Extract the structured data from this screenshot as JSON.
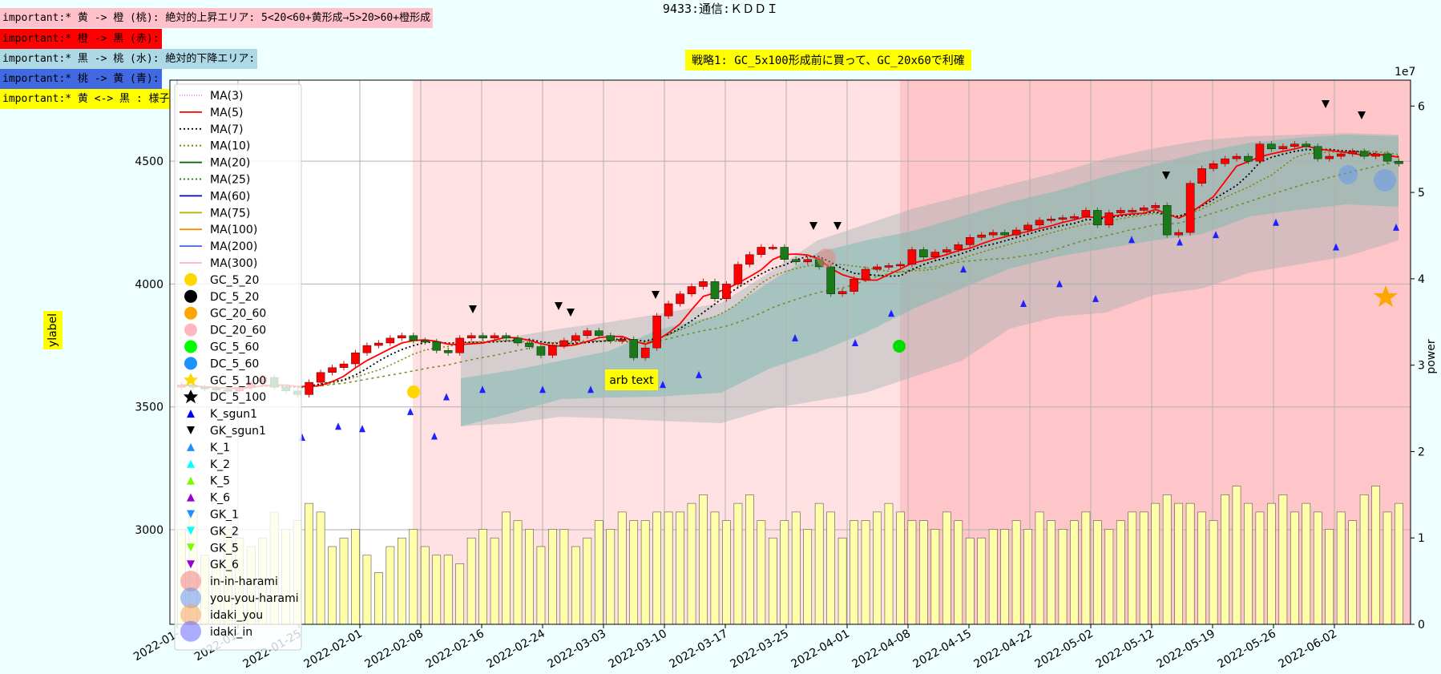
{
  "title": "9433:通信:ＫＤＤＩ",
  "notes": [
    {
      "text": "important:* 黄 -> 橙 (桃): 絶対的上昇エリア: 5<20<60+黄形成→5>20>60+橙形成",
      "bg": "#ffc0cb"
    },
    {
      "text": "important:* 橙 -> 黒 (赤):",
      "bg": "#ff0000"
    },
    {
      "text": "important:* 黒 -> 桃 (水): 絶対的下降エリア:",
      "bg": "#add8e6"
    },
    {
      "text": "important:* 桃 -> 黄 (青):",
      "bg": "#4169e1"
    },
    {
      "text": "important:* 黄 <-> 黒 : 様子見:",
      "bg": "#ffff00"
    }
  ],
  "strategy_text": "戦略1: GC_5x100形成前に買って、GC_20x60で利確",
  "annotation": "arb text",
  "ylabel": "ylabel",
  "y2label": "power",
  "y2_exponent": "1e7",
  "colors": {
    "background": "#eeffff",
    "up": "#ff0000",
    "down": "#1a7a1a",
    "volume": "#ffffaa"
  },
  "chart_data": {
    "type": "candlestick",
    "x_ticks": [
      "2022-01-",
      "2022-01-",
      "2022-01-25",
      "2022-02-01",
      "2022-02-08",
      "2022-02-16",
      "2022-02-24",
      "2022-03-03",
      "2022-03-10",
      "2022-03-17",
      "2022-03-25",
      "2022-04-01",
      "2022-04-08",
      "2022-04-15",
      "2022-04-22",
      "2022-05-02",
      "2022-05-12",
      "2022-05-19",
      "2022-05-26",
      "2022-06-02"
    ],
    "y_ticks": [
      3000,
      3500,
      4000,
      4500
    ],
    "ylim": [
      2615,
      4830
    ],
    "y2_ticks": [
      0,
      1,
      2,
      3,
      4,
      5,
      6
    ],
    "y2lim": [
      0,
      6.3
    ],
    "legend": [
      "MA(3)",
      "MA(5)",
      "MA(7)",
      "MA(10)",
      "MA(20)",
      "MA(25)",
      "MA(60)",
      "MA(75)",
      "MA(100)",
      "MA(200)",
      "MA(300)",
      "GC_5_20",
      "DC_5_20",
      "GC_20_60",
      "DC_20_60",
      "GC_5_60",
      "DC_5_60",
      "GC_5_100",
      "DC_5_100",
      "K_sgun1",
      "GK_sgun1",
      "K_1",
      "K_2",
      "K_5",
      "K_6",
      "GK_1",
      "GK_2",
      "GK_5",
      "GK_6",
      "in-in-harami",
      "you-you-harami",
      "idaki_you",
      "idaki_in"
    ],
    "legend_colors": [
      "#ee82ee",
      "#ff0000",
      "#000000",
      "#808000",
      "#006400",
      "#008000",
      "#0000cd",
      "#bdb500",
      "#ff8c00",
      "#4169e1",
      "#ffb6c1",
      "#ffd700",
      "#000000",
      "#ffa500",
      "#ffb6c1",
      "#00ff00",
      "#1e90ff",
      "#ffd700",
      "#000000",
      "#0000ff",
      "#000000",
      "#1e90ff",
      "#00ffff",
      "#7cfc00",
      "#9400d3",
      "#1e90ff",
      "#00ffff",
      "#7cfc00",
      "#9400d3",
      "#f08080",
      "#6495ed",
      "#f4a460",
      "#6a6aff"
    ],
    "close": [
      3590,
      3580,
      3575,
      3570,
      3565,
      3580,
      3600,
      3620,
      3580,
      3565,
      3550,
      3600,
      3640,
      3660,
      3675,
      3720,
      3750,
      3760,
      3780,
      3790,
      3770,
      3765,
      3730,
      3720,
      3780,
      3790,
      3780,
      3790,
      3780,
      3760,
      3745,
      3710,
      3750,
      3770,
      3790,
      3810,
      3790,
      3770,
      3775,
      3700,
      3740,
      3870,
      3920,
      3960,
      3990,
      4010,
      3940,
      4000,
      4080,
      4120,
      4150,
      4150,
      4100,
      4090,
      4100,
      4070,
      3960,
      3970,
      4020,
      4060,
      4070,
      4075,
      4080,
      4140,
      4110,
      4130,
      4140,
      4160,
      4190,
      4200,
      4210,
      4200,
      4220,
      4240,
      4260,
      4265,
      4270,
      4275,
      4300,
      4240,
      4290,
      4300,
      4300,
      4310,
      4320,
      4200,
      4210,
      4410,
      4470,
      4490,
      4510,
      4520,
      4500,
      4570,
      4550,
      4560,
      4570,
      4560,
      4510,
      4520,
      4530,
      4540,
      4520,
      4530,
      4500,
      4490
    ],
    "volume": [
      1.1,
      1.3,
      0.8,
      0.7,
      1.1,
      1.0,
      0.9,
      1.0,
      1.3,
      1.1,
      1.2,
      1.4,
      1.3,
      0.9,
      1.0,
      1.1,
      0.8,
      0.6,
      0.9,
      1.0,
      1.1,
      0.9,
      0.8,
      0.8,
      0.7,
      1.0,
      1.1,
      1.0,
      1.3,
      1.2,
      1.1,
      0.9,
      1.1,
      1.1,
      0.9,
      1.0,
      1.2,
      1.1,
      1.3,
      1.2,
      1.2,
      1.3,
      1.3,
      1.3,
      1.4,
      1.5,
      1.3,
      1.2,
      1.4,
      1.5,
      1.2,
      1.0,
      1.2,
      1.3,
      1.1,
      1.4,
      1.3,
      1.0,
      1.2,
      1.2,
      1.3,
      1.4,
      1.3,
      1.2,
      1.2,
      1.1,
      1.3,
      1.2,
      1.0,
      1.0,
      1.1,
      1.1,
      1.2,
      1.1,
      1.3,
      1.2,
      1.1,
      1.2,
      1.3,
      1.2,
      1.1,
      1.2,
      1.3,
      1.3,
      1.4,
      1.5,
      1.4,
      1.4,
      1.3,
      1.2,
      1.5,
      1.6,
      1.4,
      1.3,
      1.4,
      1.5,
      1.3,
      1.4,
      1.3,
      1.1,
      1.3,
      1.2,
      1.5,
      1.6,
      1.3,
      1.4
    ]
  }
}
